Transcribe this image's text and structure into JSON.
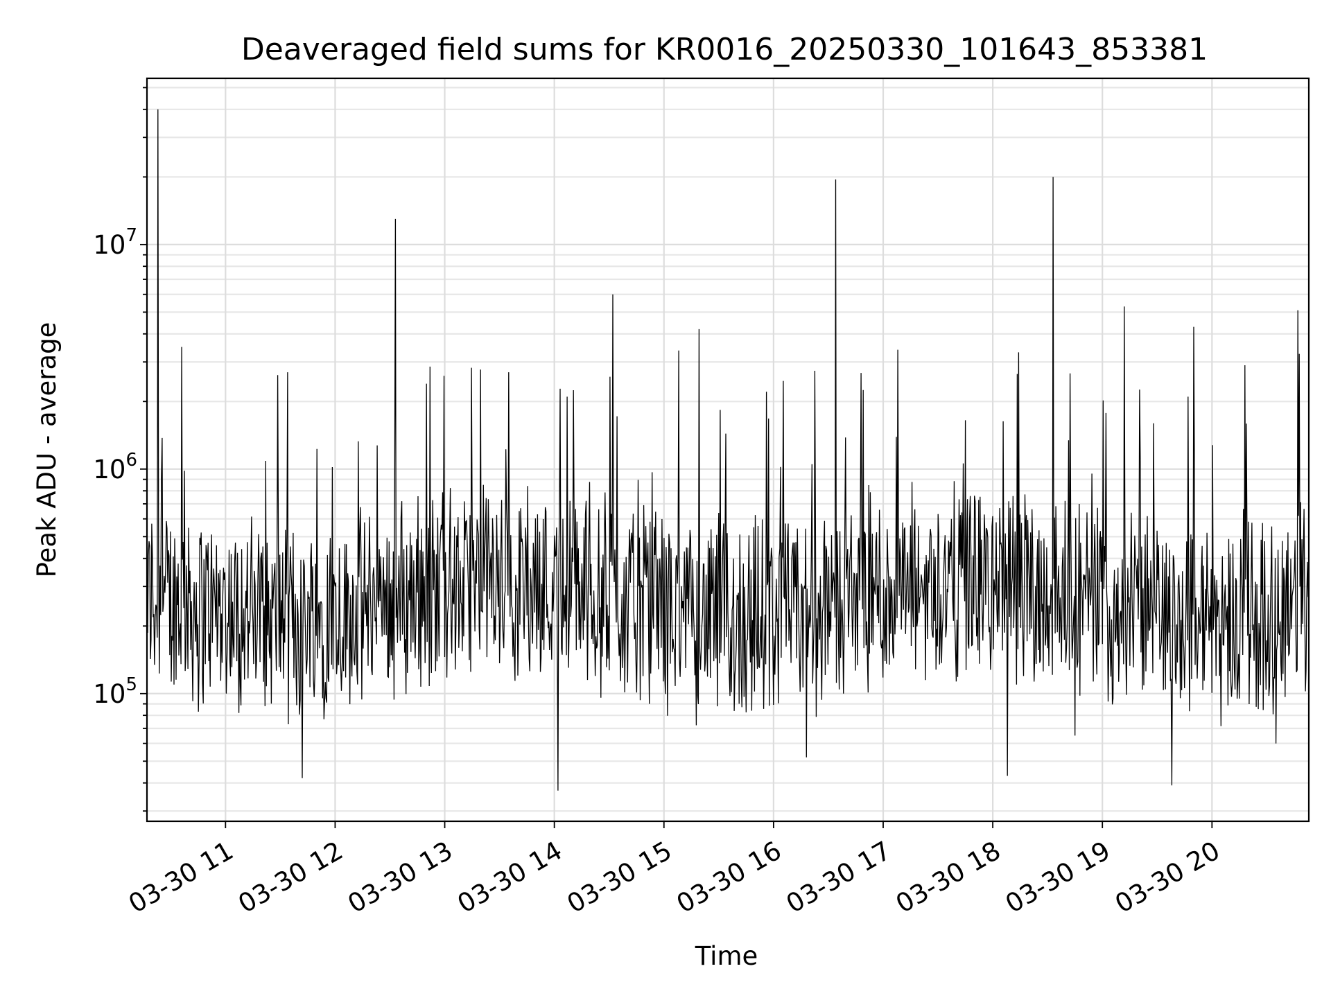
{
  "chart_data": {
    "type": "line",
    "title": "Deaveraged field sums for KR0016_20250330_101643_853381",
    "xlabel": "Time",
    "ylabel": "Peak ADU - average",
    "yscale": "log",
    "ylim": [
      27000,
      55000000
    ],
    "xlim": [
      "03-30 10:17",
      "03-30 20:53"
    ],
    "grid": true,
    "x_ticks": [
      "03-30 11",
      "03-30 12",
      "03-30 13",
      "03-30 14",
      "03-30 15",
      "03-30 16",
      "03-30 17",
      "03-30 18",
      "03-30 19",
      "03-30 20"
    ],
    "y_ticks": [
      {
        "value": 100000,
        "base": "10",
        "exp": "5"
      },
      {
        "value": 1000000,
        "base": "10",
        "exp": "6"
      },
      {
        "value": 10000000,
        "base": "10",
        "exp": "7"
      }
    ],
    "series": [
      {
        "color": "#000000",
        "x": [
          "03-30 10:17",
          "03-30 10:23",
          "03-30 10:36",
          "03-30 10:52",
          "03-30 11:10",
          "03-30 11:34",
          "03-30 11:42",
          "03-30 12:00",
          "03-30 12:33",
          "03-30 12:50",
          "03-30 13:05",
          "03-30 13:35",
          "03-30 14:02",
          "03-30 14:07",
          "03-30 14:32",
          "03-30 14:52",
          "03-30 15:10",
          "03-30 15:35",
          "03-30 16:18",
          "03-30 16:34",
          "03-30 17:08",
          "03-30 17:22",
          "03-30 17:45",
          "03-30 18:08",
          "03-30 18:33",
          "03-30 18:45",
          "03-30 19:12",
          "03-30 19:28",
          "03-30 19:38",
          "03-30 19:50",
          "03-30 20:03",
          "03-30 20:18",
          "03-30 20:35",
          "03-30 20:47",
          "03-30 20:53"
        ],
        "y": [
          450000,
          40000000,
          3500000,
          320000,
          240000,
          2700000,
          42000,
          300000,
          13000000,
          2400000,
          250000,
          2700000,
          37000,
          2100000,
          6000000,
          90000,
          240000,
          230000,
          52000,
          19500000,
          3400000,
          250000,
          1650000,
          43000,
          20000000,
          65000,
          5300000,
          1600000,
          39000,
          4300000,
          220000,
          2900000,
          60000,
          5100000,
          330000
        ]
      }
    ]
  }
}
